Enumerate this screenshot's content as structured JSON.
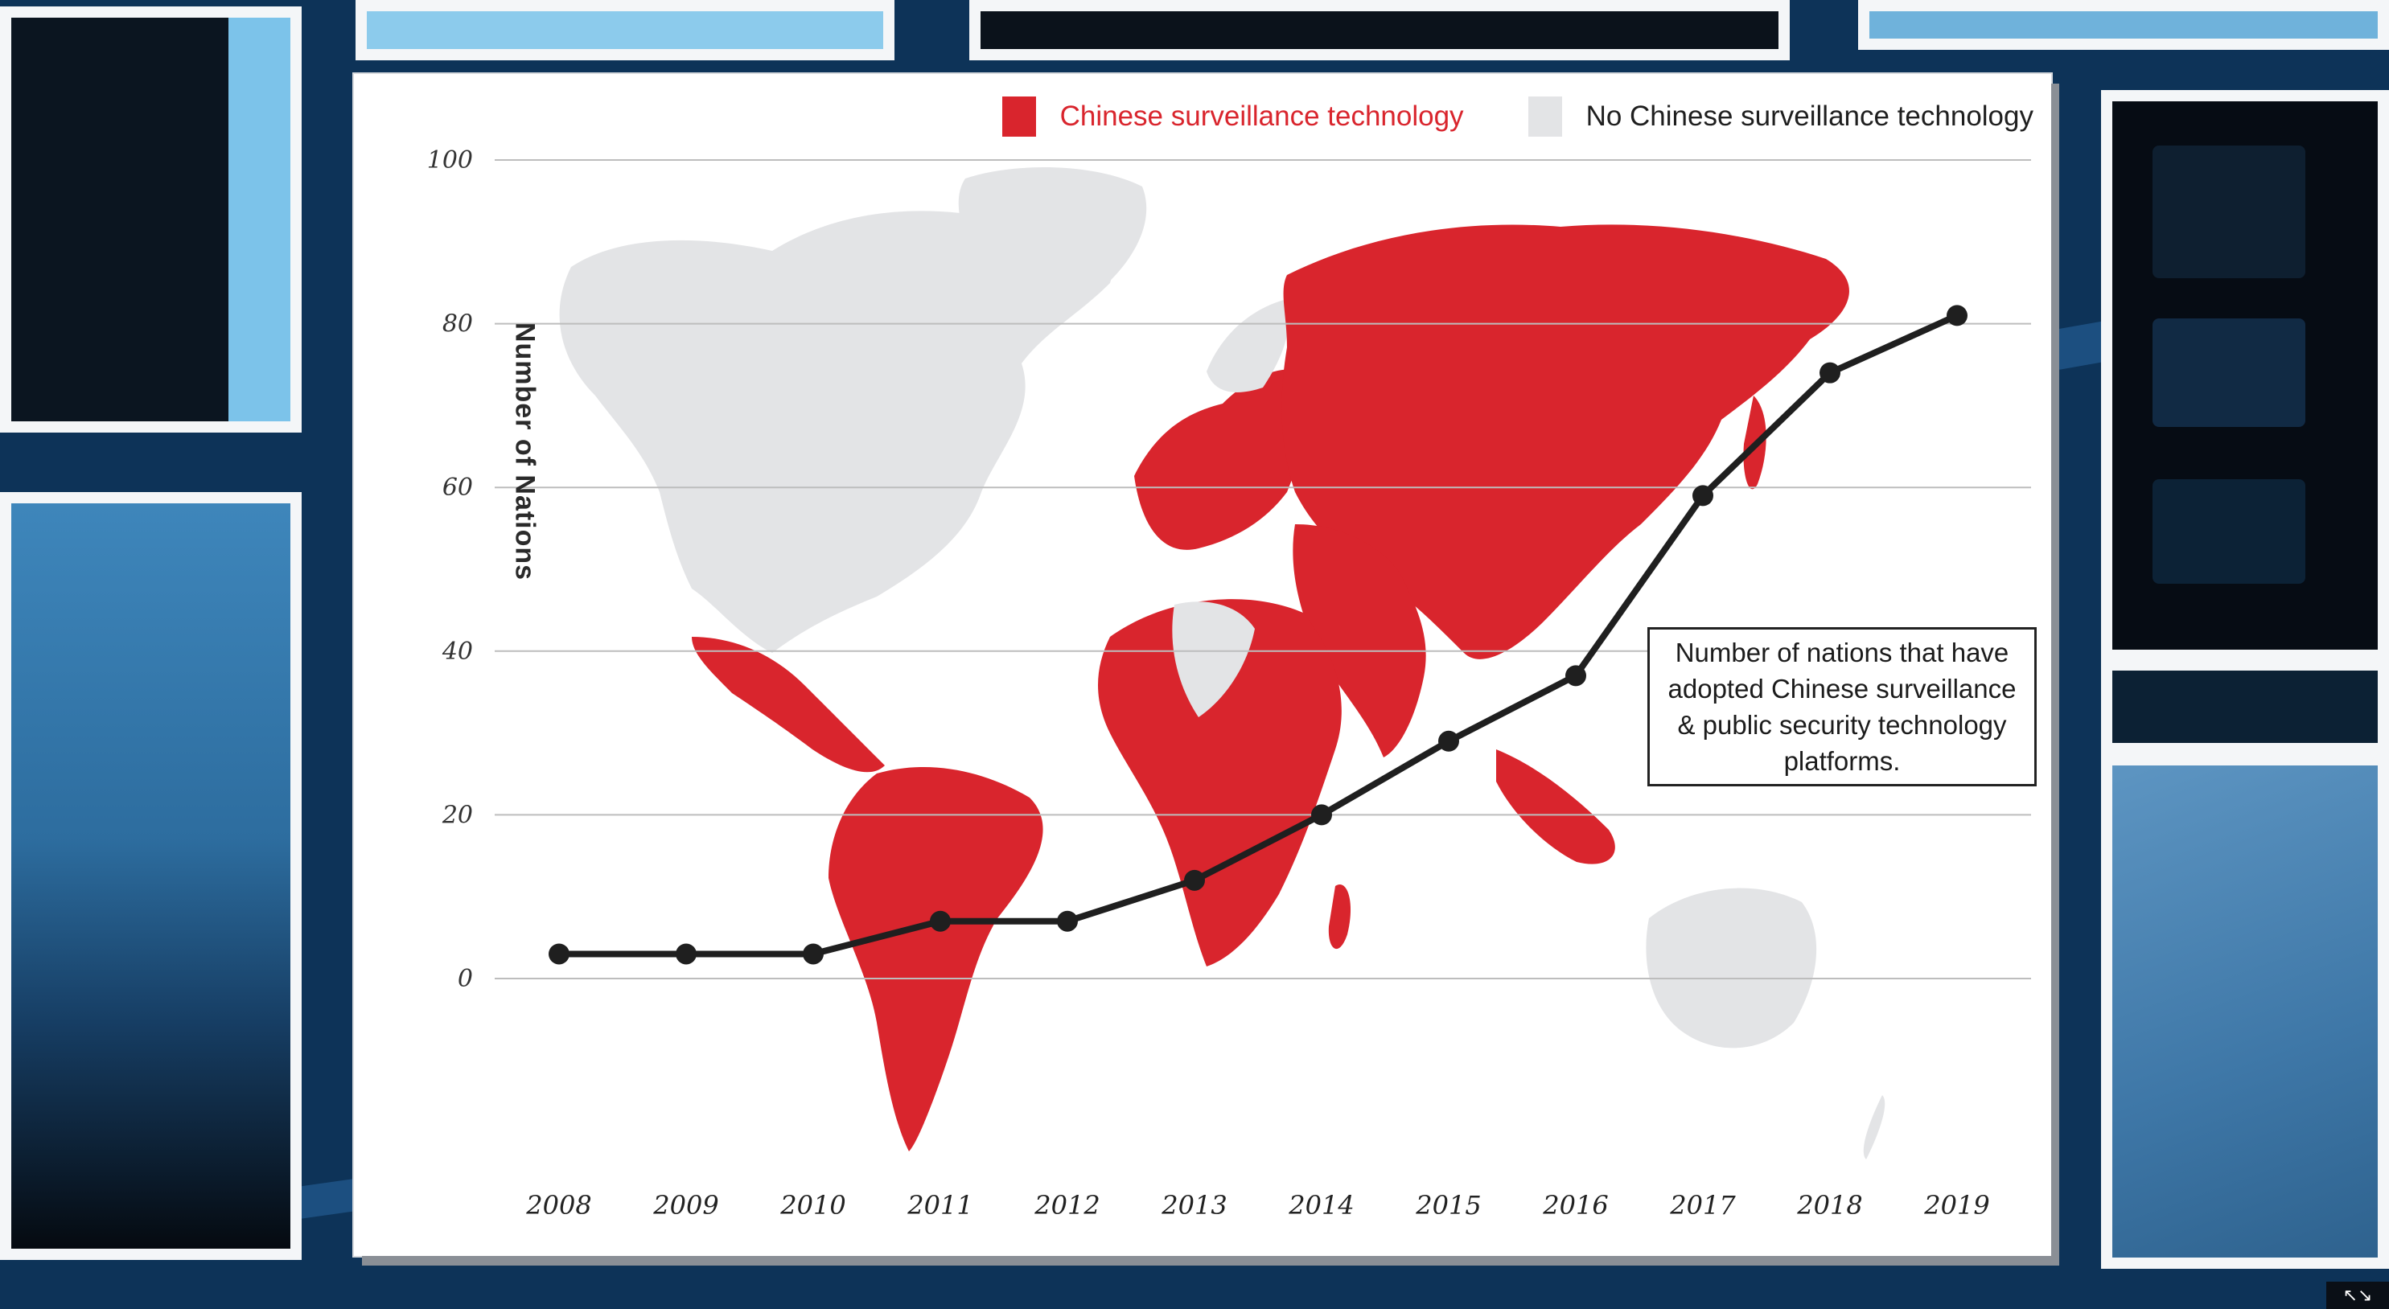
{
  "colors": {
    "adopted": "#d9252d",
    "not_adopted": "#e3e4e6",
    "line": "#1f1f1f",
    "grid": "#bdbdbd",
    "background": "#0d3358"
  },
  "legend": {
    "adopted_label": "Chinese surveillance technology",
    "not_adopted_label": "No Chinese surveillance technology"
  },
  "annotation": {
    "text": "Number of nations that have adopted Chinese surveillance & public security technology platforms."
  },
  "chart_data": {
    "type": "line",
    "title": "",
    "xlabel": "",
    "ylabel": "Number of Nations",
    "x": [
      "2008",
      "2009",
      "2010",
      "2011",
      "2012",
      "2013",
      "2014",
      "2015",
      "2016",
      "2017",
      "2018",
      "2019"
    ],
    "series": [
      {
        "values": [
          3,
          3,
          3,
          7,
          7,
          12,
          20,
          29,
          37,
          59,
          74,
          81
        ]
      }
    ],
    "ylim": [
      0,
      100
    ],
    "yticks": [
      "0",
      "20",
      "40",
      "60",
      "80",
      "100"
    ],
    "grid": true,
    "legend_position": "top-right",
    "background_map": "world map with adopting countries highlighted"
  },
  "icons": {
    "corner": "expand-arrows-icon"
  }
}
